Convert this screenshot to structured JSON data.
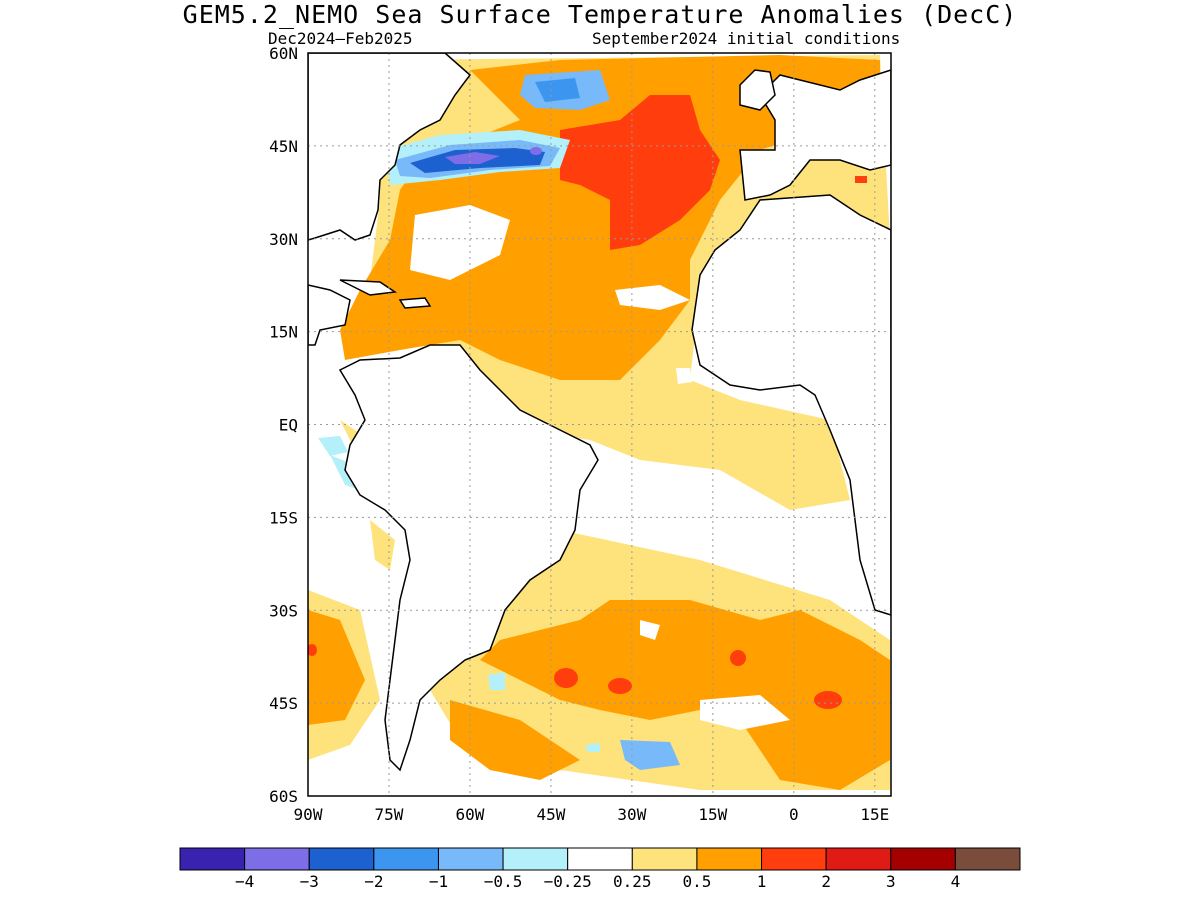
{
  "title": "GEM5.2_NEMO Sea Surface Temperature Anomalies (DecC)",
  "subtitle_left": "Dec2024–Feb2025",
  "subtitle_right": "September2024 initial conditions",
  "map": {
    "projection": "lat-lon",
    "lon_range": [
      -90,
      18
    ],
    "lat_range": [
      -60,
      60
    ],
    "lon_ticks": [
      "90W",
      "75W",
      "60W",
      "45W",
      "30W",
      "15W",
      "0",
      "15E"
    ],
    "lat_ticks": [
      "60N",
      "45N",
      "30N",
      "15N",
      "EQ",
      "15S",
      "30S",
      "45S",
      "60S"
    ],
    "grid": "dotted"
  },
  "legend": {
    "colors": [
      "#3a22b0",
      "#7d6de6",
      "#1d60cf",
      "#3c96f0",
      "#78b9fa",
      "#b4f0fa",
      "#ffffff",
      "#fee37d",
      "#ffa000",
      "#ff3d0d",
      "#e01b16",
      "#a50000",
      "#7a4c3c"
    ],
    "labels": [
      "−4",
      "−3",
      "−2",
      "−1",
      "−0.5",
      "−0.25",
      "0.25",
      "0.5",
      "1",
      "2",
      "3",
      "4"
    ]
  }
}
